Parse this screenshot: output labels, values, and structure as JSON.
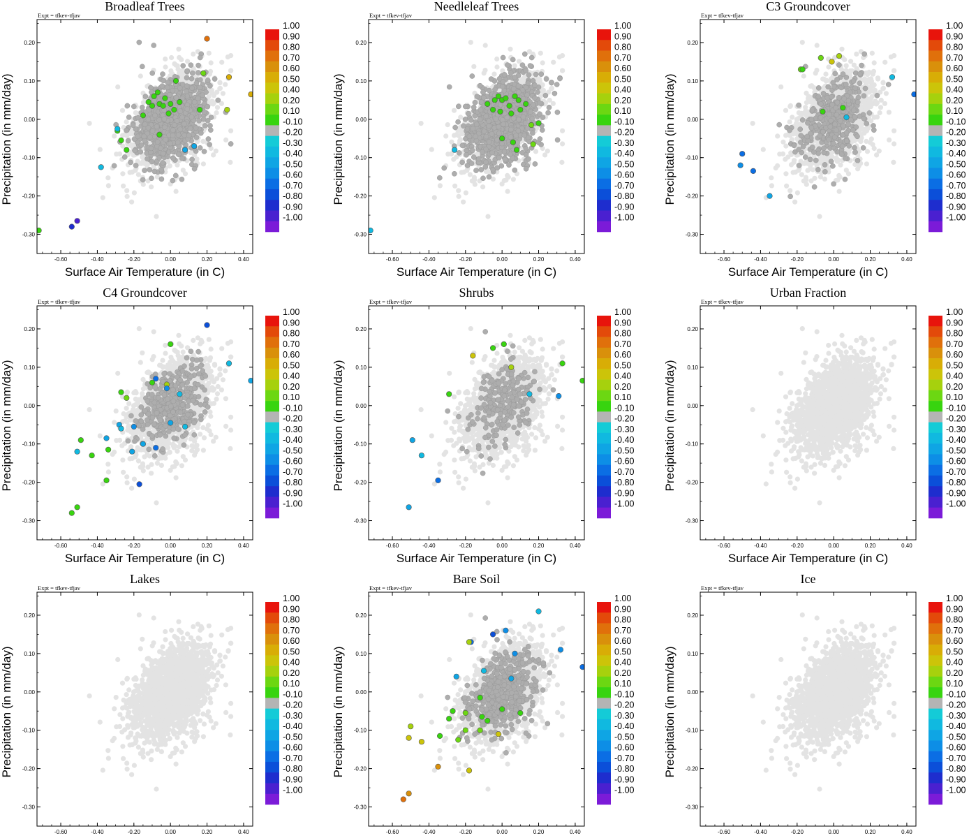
{
  "chart_data": {
    "type": "scatter",
    "xlabel": "Surface Air Temperature (in C)",
    "ylabel": "Precipitation (in mm/day)",
    "xlim": [
      -0.73,
      0.45
    ],
    "ylim": [
      -0.35,
      0.26
    ],
    "xticks": [
      -0.6,
      -0.4,
      -0.2,
      0.0,
      0.2,
      0.4
    ],
    "xtick_labels": [
      "-0.60",
      "-0.40",
      "-0.20",
      "0.00",
      "0.20",
      "0.40"
    ],
    "yticks": [
      -0.3,
      -0.2,
      -0.1,
      0.0,
      0.1,
      0.2
    ],
    "ytick_labels": [
      "-0.30",
      "-0.20",
      "-0.10",
      "0.00",
      "0.10",
      "0.20"
    ],
    "annotation": "Expt = tfkev-tfjav",
    "colorbar": {
      "labels": [
        "1.00",
        "0.90",
        "0.80",
        "0.70",
        "0.60",
        "0.50",
        "0.40",
        "0.20",
        "0.10",
        "-0.10",
        "-0.20",
        "-0.30",
        "-0.40",
        "-0.50",
        "-0.60",
        "-0.70",
        "-0.80",
        "-0.90",
        "-1.00"
      ],
      "colors": [
        "#e8140c",
        "#e34a0a",
        "#e0700b",
        "#d9900b",
        "#d8ad06",
        "#ccc409",
        "#a6d10d",
        "#6cd712",
        "#38d40f",
        "#b4b4b4",
        "#14cbd7",
        "#10b9e0",
        "#0fa5e4",
        "#0d8ee6",
        "#0b6ee4",
        "#0b4fd9",
        "#1e2dce",
        "#4a20d0",
        "#7b1bd8"
      ]
    },
    "background_color": "#e3e3e3",
    "neutral_color": "#adadad",
    "seeds": [
      11,
      23,
      37,
      53,
      71,
      89,
      101,
      131,
      149
    ],
    "panels": [
      {
        "title": "Broadleaf Trees",
        "gray_fraction": 0.7,
        "gray_radius": 0.32,
        "points": [
          {
            "x": 0.2,
            "y": 0.21,
            "v": 0.8
          },
          {
            "x": 0.32,
            "y": 0.11,
            "v": 0.6
          },
          {
            "x": 0.44,
            "y": 0.065,
            "v": 0.6
          },
          {
            "x": 0.18,
            "y": 0.12,
            "v": 0.3
          },
          {
            "x": 0.31,
            "y": 0.025,
            "v": 0.4
          },
          {
            "x": -0.12,
            "y": 0.045,
            "v": 0.25
          },
          {
            "x": -0.09,
            "y": 0.06,
            "v": 0.15
          },
          {
            "x": -0.07,
            "y": 0.07,
            "v": 0.15
          },
          {
            "x": -0.03,
            "y": 0.055,
            "v": 0.15
          },
          {
            "x": 0.03,
            "y": 0.1,
            "v": 0.15
          },
          {
            "x": -0.1,
            "y": 0.035,
            "v": 0.15
          },
          {
            "x": -0.06,
            "y": 0.04,
            "v": 0.15
          },
          {
            "x": -0.04,
            "y": 0.035,
            "v": 0.15
          },
          {
            "x": 0.0,
            "y": 0.04,
            "v": 0.15
          },
          {
            "x": 0.05,
            "y": 0.045,
            "v": 0.15
          },
          {
            "x": 0.02,
            "y": 0.025,
            "v": 0.15
          },
          {
            "x": -0.01,
            "y": 0.015,
            "v": 0.15
          },
          {
            "x": -0.15,
            "y": 0.01,
            "v": 0.15
          },
          {
            "x": 0.16,
            "y": 0.025,
            "v": 0.15
          },
          {
            "x": -0.27,
            "y": -0.055,
            "v": 0.15
          },
          {
            "x": -0.24,
            "y": -0.08,
            "v": 0.15
          },
          {
            "x": -0.06,
            "y": -0.04,
            "v": 0.15
          },
          {
            "x": -0.29,
            "y": -0.03,
            "v": 0.15
          },
          {
            "x": -0.72,
            "y": -0.29,
            "v": 0.15
          },
          {
            "x": -0.51,
            "y": -0.265,
            "v": -0.85
          },
          {
            "x": -0.54,
            "y": -0.28,
            "v": -0.75
          },
          {
            "x": -0.29,
            "y": -0.025,
            "v": -0.25
          },
          {
            "x": -0.38,
            "y": -0.125,
            "v": -0.25
          },
          {
            "x": 0.08,
            "y": -0.08,
            "v": -0.3
          },
          {
            "x": 0.13,
            "y": -0.07,
            "v": -0.3
          }
        ]
      },
      {
        "title": "Needleleaf Trees",
        "gray_fraction": 0.8,
        "gray_radius": 0.34,
        "points": [
          {
            "x": -0.08,
            "y": 0.04,
            "v": 0.15
          },
          {
            "x": -0.04,
            "y": 0.05,
            "v": 0.15
          },
          {
            "x": -0.02,
            "y": 0.06,
            "v": 0.15
          },
          {
            "x": 0.0,
            "y": 0.05,
            "v": 0.15
          },
          {
            "x": 0.02,
            "y": 0.055,
            "v": 0.15
          },
          {
            "x": 0.04,
            "y": 0.035,
            "v": 0.15
          },
          {
            "x": 0.07,
            "y": 0.06,
            "v": 0.15
          },
          {
            "x": 0.09,
            "y": 0.05,
            "v": 0.15
          },
          {
            "x": 0.1,
            "y": 0.025,
            "v": 0.15
          },
          {
            "x": 0.13,
            "y": 0.04,
            "v": 0.15
          },
          {
            "x": -0.05,
            "y": 0.025,
            "v": 0.15
          },
          {
            "x": -0.01,
            "y": 0.02,
            "v": 0.15
          },
          {
            "x": 0.05,
            "y": 0.015,
            "v": 0.15
          },
          {
            "x": 0.0,
            "y": -0.05,
            "v": 0.15
          },
          {
            "x": 0.06,
            "y": -0.06,
            "v": 0.15
          },
          {
            "x": 0.08,
            "y": -0.08,
            "v": 0.15
          },
          {
            "x": 0.17,
            "y": -0.065,
            "v": 0.3
          },
          {
            "x": 0.2,
            "y": -0.01,
            "v": 0.15
          },
          {
            "x": 0.16,
            "y": -0.015,
            "v": 0.3
          },
          {
            "x": -0.72,
            "y": -0.29,
            "v": -0.25
          },
          {
            "x": -0.26,
            "y": -0.08,
            "v": -0.25
          }
        ]
      },
      {
        "title": "C3 Groundcover",
        "gray_fraction": 0.34,
        "gray_radius": 0.3,
        "points": [
          {
            "x": 0.03,
            "y": 0.165,
            "v": 0.45
          },
          {
            "x": -0.01,
            "y": 0.15,
            "v": 0.5
          },
          {
            "x": -0.07,
            "y": 0.16,
            "v": 0.3
          },
          {
            "x": -0.18,
            "y": 0.13,
            "v": 0.3
          },
          {
            "x": -0.17,
            "y": 0.13,
            "v": 0.15
          },
          {
            "x": 0.05,
            "y": 0.03,
            "v": 0.15
          },
          {
            "x": -0.06,
            "y": 0.02,
            "v": 0.15
          },
          {
            "x": 0.32,
            "y": 0.11,
            "v": -0.25
          },
          {
            "x": 0.44,
            "y": 0.065,
            "v": -0.5
          },
          {
            "x": 0.07,
            "y": 0.005,
            "v": -0.25
          },
          {
            "x": -0.5,
            "y": -0.09,
            "v": -0.5
          },
          {
            "x": -0.51,
            "y": -0.12,
            "v": -0.4
          },
          {
            "x": -0.44,
            "y": -0.135,
            "v": -0.5
          },
          {
            "x": -0.35,
            "y": -0.2,
            "v": -0.35
          }
        ]
      },
      {
        "title": "C4 Groundcover",
        "gray_fraction": 0.36,
        "gray_radius": 0.22,
        "points": [
          {
            "x": 0.0,
            "y": 0.16,
            "v": 0.15
          },
          {
            "x": 0.2,
            "y": 0.21,
            "v": -0.6
          },
          {
            "x": 0.32,
            "y": 0.11,
            "v": -0.25
          },
          {
            "x": 0.44,
            "y": 0.065,
            "v": -0.3
          },
          {
            "x": -0.08,
            "y": 0.07,
            "v": -0.5
          },
          {
            "x": -0.02,
            "y": 0.055,
            "v": 0.45
          },
          {
            "x": -0.1,
            "y": 0.06,
            "v": 0.15
          },
          {
            "x": -0.27,
            "y": 0.035,
            "v": 0.15
          },
          {
            "x": -0.24,
            "y": 0.02,
            "v": 0.3
          },
          {
            "x": -0.02,
            "y": 0.045,
            "v": -0.4
          },
          {
            "x": 0.05,
            "y": 0.03,
            "v": -0.25
          },
          {
            "x": -0.28,
            "y": -0.05,
            "v": -0.35
          },
          {
            "x": -0.2,
            "y": -0.055,
            "v": -0.4
          },
          {
            "x": -0.27,
            "y": -0.06,
            "v": -0.2
          },
          {
            "x": -0.35,
            "y": -0.085,
            "v": -0.35
          },
          {
            "x": -0.49,
            "y": -0.09,
            "v": 0.15
          },
          {
            "x": -0.51,
            "y": -0.12,
            "v": -0.25
          },
          {
            "x": -0.43,
            "y": -0.13,
            "v": 0.15
          },
          {
            "x": -0.34,
            "y": -0.115,
            "v": 0.15
          },
          {
            "x": -0.21,
            "y": -0.12,
            "v": -0.3
          },
          {
            "x": -0.08,
            "y": -0.11,
            "v": -0.5
          },
          {
            "x": -0.15,
            "y": -0.1,
            "v": -0.3
          },
          {
            "x": -0.35,
            "y": -0.195,
            "v": 0.15
          },
          {
            "x": -0.17,
            "y": -0.205,
            "v": -0.6
          },
          {
            "x": -0.54,
            "y": -0.28,
            "v": 0.15
          },
          {
            "x": -0.51,
            "y": -0.265,
            "v": 0.15
          },
          {
            "x": 0.0,
            "y": -0.045,
            "v": -0.35
          },
          {
            "x": 0.08,
            "y": -0.055,
            "v": -0.25
          }
        ]
      },
      {
        "title": "Shrubs",
        "gray_fraction": 0.2,
        "gray_radius": 0.28,
        "points": [
          {
            "x": -0.16,
            "y": 0.13,
            "v": 0.5
          },
          {
            "x": -0.05,
            "y": 0.15,
            "v": 0.15
          },
          {
            "x": 0.01,
            "y": 0.16,
            "v": 0.15
          },
          {
            "x": 0.05,
            "y": 0.1,
            "v": 0.4
          },
          {
            "x": 0.33,
            "y": 0.11,
            "v": 0.15
          },
          {
            "x": 0.44,
            "y": 0.065,
            "v": 0.15
          },
          {
            "x": -0.29,
            "y": 0.03,
            "v": 0.15
          },
          {
            "x": 0.15,
            "y": 0.03,
            "v": -0.25
          },
          {
            "x": 0.31,
            "y": 0.025,
            "v": -0.4
          },
          {
            "x": -0.49,
            "y": -0.09,
            "v": -0.35
          },
          {
            "x": -0.35,
            "y": -0.195,
            "v": -0.55
          },
          {
            "x": -0.51,
            "y": -0.265,
            "v": -0.3
          },
          {
            "x": -0.44,
            "y": -0.13,
            "v": -0.25
          }
        ]
      },
      {
        "title": "Urban Fraction",
        "gray_fraction": 0.0,
        "gray_radius": 0.0,
        "points": []
      },
      {
        "title": "Lakes",
        "gray_fraction": 0.0,
        "gray_radius": 0.0,
        "points": []
      },
      {
        "title": "Bare Soil",
        "gray_fraction": 0.4,
        "gray_radius": 0.27,
        "points": [
          {
            "x": 0.2,
            "y": 0.21,
            "v": -0.25
          },
          {
            "x": 0.02,
            "y": 0.16,
            "v": -0.45
          },
          {
            "x": -0.05,
            "y": 0.15,
            "v": -0.7
          },
          {
            "x": 0.32,
            "y": 0.11,
            "v": -0.4
          },
          {
            "x": 0.44,
            "y": 0.065,
            "v": -0.5
          },
          {
            "x": 0.07,
            "y": 0.1,
            "v": -0.4
          },
          {
            "x": -0.17,
            "y": 0.13,
            "v": -0.5
          },
          {
            "x": -0.18,
            "y": 0.13,
            "v": 0.4
          },
          {
            "x": -0.1,
            "y": 0.055,
            "v": -0.25
          },
          {
            "x": -0.25,
            "y": 0.04,
            "v": -0.3
          },
          {
            "x": 0.05,
            "y": 0.035,
            "v": -0.3
          },
          {
            "x": -0.12,
            "y": -0.015,
            "v": 0.15
          },
          {
            "x": -0.27,
            "y": -0.05,
            "v": 0.15
          },
          {
            "x": -0.2,
            "y": -0.055,
            "v": 0.3
          },
          {
            "x": -0.29,
            "y": -0.07,
            "v": 0.15
          },
          {
            "x": 0.0,
            "y": -0.045,
            "v": 0.15
          },
          {
            "x": -0.11,
            "y": -0.065,
            "v": 0.15
          },
          {
            "x": -0.08,
            "y": -0.075,
            "v": 0.15
          },
          {
            "x": 0.1,
            "y": -0.055,
            "v": 0.15
          },
          {
            "x": -0.5,
            "y": -0.09,
            "v": 0.45
          },
          {
            "x": -0.51,
            "y": -0.12,
            "v": 0.5
          },
          {
            "x": -0.44,
            "y": -0.13,
            "v": 0.5
          },
          {
            "x": -0.34,
            "y": -0.115,
            "v": 0.15
          },
          {
            "x": -0.24,
            "y": -0.125,
            "v": 0.3
          },
          {
            "x": -0.2,
            "y": -0.1,
            "v": 0.3
          },
          {
            "x": -0.12,
            "y": -0.1,
            "v": 0.3
          },
          {
            "x": -0.02,
            "y": -0.11,
            "v": 0.5
          },
          {
            "x": -0.35,
            "y": -0.195,
            "v": 0.7
          },
          {
            "x": -0.18,
            "y": -0.205,
            "v": 0.5
          },
          {
            "x": -0.54,
            "y": -0.28,
            "v": 0.8
          },
          {
            "x": -0.51,
            "y": -0.265,
            "v": 0.75
          }
        ]
      },
      {
        "title": "Ice",
        "gray_fraction": 0.0,
        "gray_radius": 0.0,
        "points": []
      }
    ]
  }
}
